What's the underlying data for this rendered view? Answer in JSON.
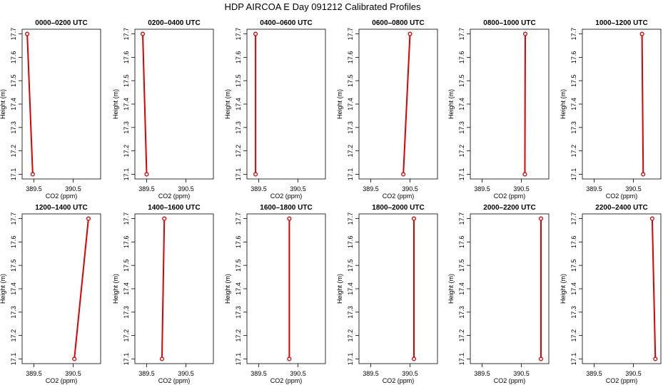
{
  "title": "HDP AIRCOA E  Day 091212  Calibrated Profiles",
  "chart_data": {
    "type": "line",
    "xlabel": "CO2 (ppm)",
    "ylabel": "Height (m)",
    "xlim": [
      389.2,
      391.2
    ],
    "ylim": [
      17.08,
      17.72
    ],
    "xticks": [
      "389.5",
      "390.5"
    ],
    "yticks": [
      "17.1",
      "17.2",
      "17.3",
      "17.4",
      "17.5",
      "17.6",
      "17.7"
    ],
    "grid": false,
    "series_color": "#dd0000",
    "panels": [
      {
        "title": "0000–0200 UTC",
        "x": [
          389.47,
          389.33
        ],
        "y": [
          17.1,
          17.7
        ]
      },
      {
        "title": "0200–0400 UTC",
        "x": [
          389.5,
          389.4
        ],
        "y": [
          17.1,
          17.7
        ]
      },
      {
        "title": "0400–0600 UTC",
        "x": [
          389.42,
          389.42
        ],
        "y": [
          17.1,
          17.7
        ]
      },
      {
        "title": "0600–0800 UTC",
        "x": [
          390.33,
          390.5
        ],
        "y": [
          17.1,
          17.7
        ]
      },
      {
        "title": "0800–1000 UTC",
        "x": [
          390.59,
          390.6
        ],
        "y": [
          17.1,
          17.7
        ]
      },
      {
        "title": "1000–1200 UTC",
        "x": [
          390.75,
          390.72
        ],
        "y": [
          17.1,
          17.7
        ]
      },
      {
        "title": "1200–1400 UTC",
        "x": [
          390.53,
          390.89
        ],
        "y": [
          17.1,
          17.7
        ]
      },
      {
        "title": "1400–1600 UTC",
        "x": [
          389.89,
          389.95
        ],
        "y": [
          17.1,
          17.7
        ]
      },
      {
        "title": "1600–1800 UTC",
        "x": [
          390.28,
          390.28
        ],
        "y": [
          17.1,
          17.7
        ]
      },
      {
        "title": "1800–2000 UTC",
        "x": [
          390.6,
          390.6
        ],
        "y": [
          17.1,
          17.7
        ]
      },
      {
        "title": "2000–2200 UTC",
        "x": [
          391.0,
          391.0
        ],
        "y": [
          17.1,
          17.7
        ]
      },
      {
        "title": "2200–2400 UTC",
        "x": [
          391.06,
          390.98
        ],
        "y": [
          17.1,
          17.7
        ]
      }
    ]
  }
}
